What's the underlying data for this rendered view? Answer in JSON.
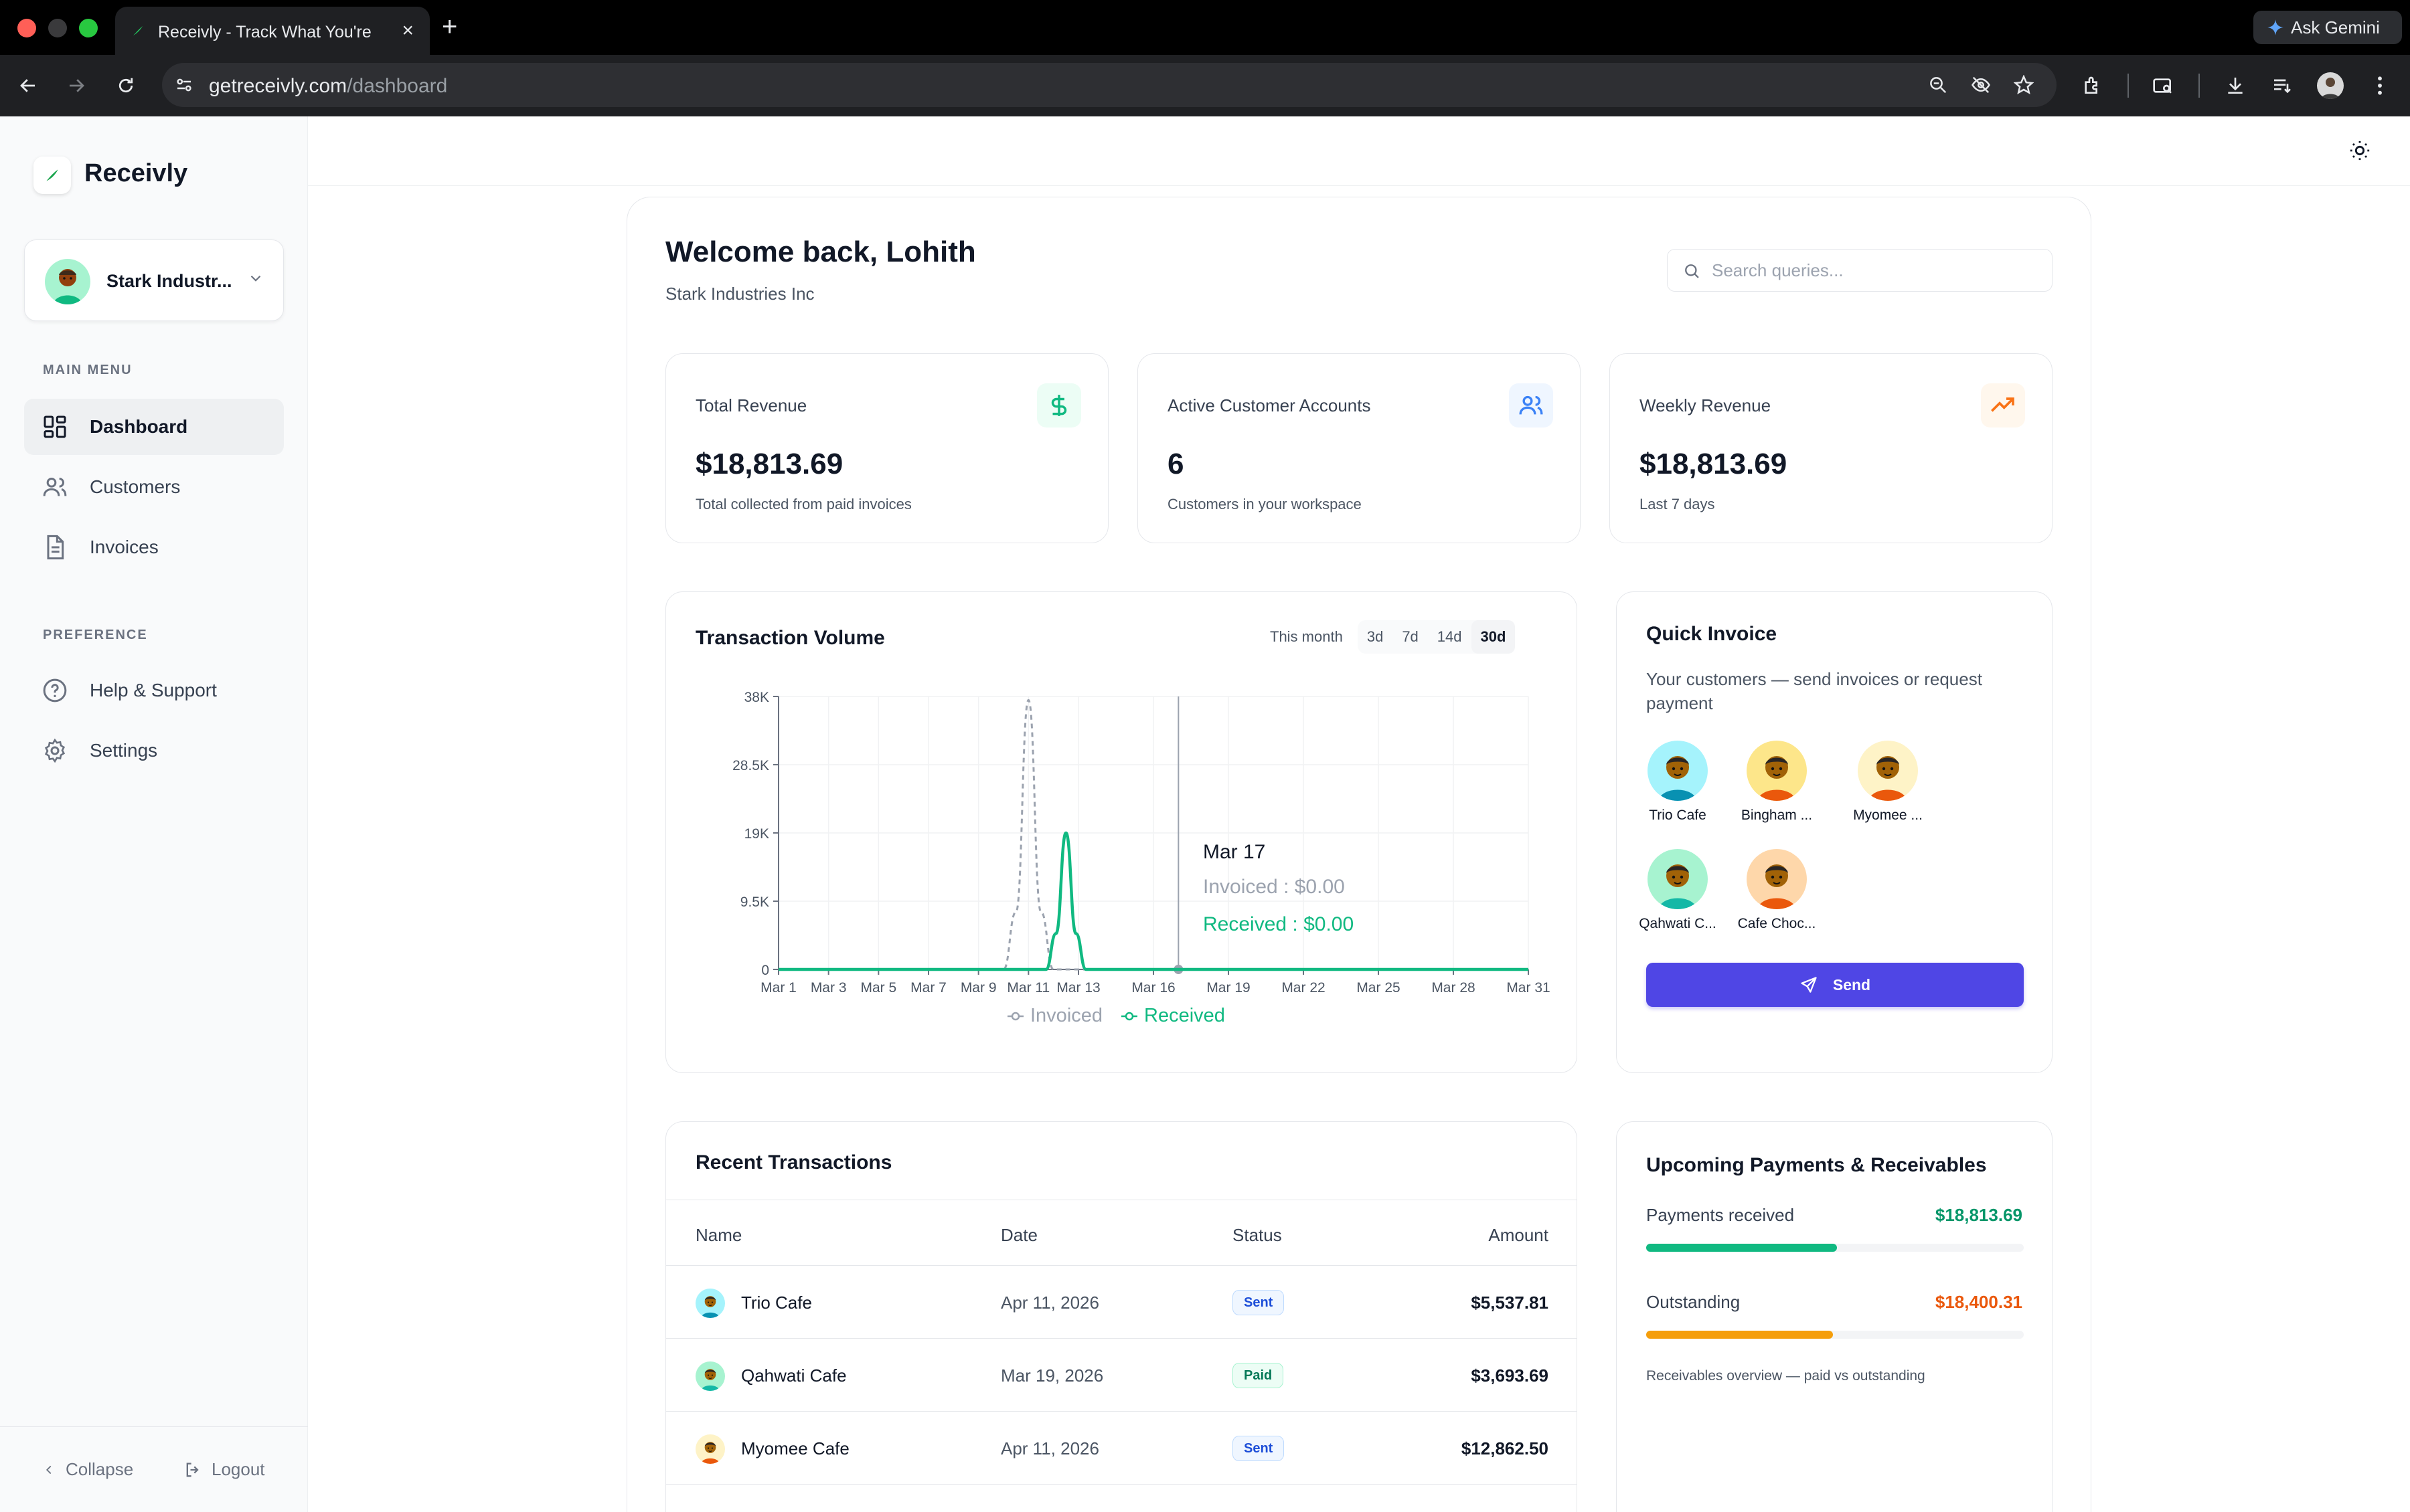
{
  "browser": {
    "tab_title": "Receivly - Track What You're",
    "url_host": "getreceivly.com",
    "url_path": "/dashboard",
    "gemini_label": "Ask Gemini"
  },
  "sidebar": {
    "brand": "Receivly",
    "workspace": "Stark Industr...",
    "main_menu_heading": "MAIN MENU",
    "preference_heading": "PREFERENCE",
    "items": [
      {
        "label": "Dashboard",
        "icon": "grid-icon",
        "active": true
      },
      {
        "label": "Customers",
        "icon": "users-icon"
      },
      {
        "label": "Invoices",
        "icon": "file-icon"
      }
    ],
    "preference_items": [
      {
        "label": "Help & Support",
        "icon": "help-icon"
      },
      {
        "label": "Settings",
        "icon": "gear-icon"
      }
    ],
    "collapse_label": "Collapse",
    "logout_label": "Logout"
  },
  "header": {
    "welcome": "Welcome back, Lohith",
    "company": "Stark Industries Inc",
    "search_placeholder": "Search queries..."
  },
  "stats": [
    {
      "label": "Total Revenue",
      "value": "$18,813.69",
      "sub": "Total collected from paid invoices",
      "icon": "dollar-icon",
      "color": "#10b981"
    },
    {
      "label": "Active Customer Accounts",
      "value": "6",
      "sub": "Customers in your workspace",
      "icon": "users-icon",
      "color": "#3b82f6"
    },
    {
      "label": "Weekly Revenue",
      "value": "$18,813.69",
      "sub": "Last 7 days",
      "icon": "trend-up-icon",
      "color": "#f97316"
    }
  ],
  "chart": {
    "title": "Transaction Volume",
    "ranges": [
      "This month",
      "3d",
      "7d",
      "14d",
      "30d"
    ],
    "selected_range": "30d",
    "tooltip": {
      "date": "Mar 17",
      "invoiced": "Invoiced : $0.00",
      "received": "Received : $0.00"
    }
  },
  "chart_data": {
    "type": "line",
    "x_ticks": [
      "Mar 1",
      "Mar 3",
      "Mar 5",
      "Mar 7",
      "Mar 9",
      "Mar 11",
      "Mar 13",
      "Mar 16",
      "Mar 19",
      "Mar 22",
      "Mar 25",
      "Mar 28",
      "Mar 31"
    ],
    "y_ticks": [
      "0",
      "9.5K",
      "19K",
      "28.5K",
      "38K"
    ],
    "ylim": [
      0,
      38000
    ],
    "xlim": [
      1,
      31
    ],
    "series": [
      {
        "name": "Invoiced",
        "color": "#9ca3af",
        "dashed": true,
        "x": [
          1,
          9,
          10,
          10.5,
          11,
          11.5,
          12,
          13,
          31
        ],
        "y": [
          0,
          0,
          0,
          8000,
          37500,
          8000,
          0,
          0,
          0
        ]
      },
      {
        "name": "Received",
        "color": "#10b981",
        "dashed": false,
        "x": [
          1,
          11,
          11.7,
          12.1,
          12.5,
          12.9,
          13.3,
          14,
          31
        ],
        "y": [
          0,
          0,
          0,
          5000,
          19000,
          5000,
          0,
          0,
          0
        ]
      }
    ],
    "grid": true,
    "legend": "bottom-center"
  },
  "quick_invoice": {
    "title": "Quick Invoice",
    "description": "Your customers — send invoices or request payment",
    "customers": [
      {
        "name": "Trio Cafe",
        "bg": "#a5f3fc",
        "shirt": "#0891b2"
      },
      {
        "name": "Bingham ...",
        "bg": "#fde68a",
        "shirt": "#ea580c"
      },
      {
        "name": "Myomee ...",
        "bg": "#fef3c7",
        "shirt": "#ea580c"
      },
      {
        "name": "Qahwati C...",
        "bg": "#a7f3d0",
        "shirt": "#14b8a6"
      },
      {
        "name": "Cafe Choc...",
        "bg": "#fed7aa",
        "shirt": "#ea580c"
      }
    ],
    "send_label": "Send"
  },
  "transactions": {
    "title": "Recent Transactions",
    "columns": [
      "Name",
      "Date",
      "Status",
      "Amount"
    ],
    "rows": [
      {
        "name": "Trio Cafe",
        "date": "Apr 11, 2026",
        "status": "Sent",
        "amount": "$5,537.81",
        "bg": "#a5f3fc",
        "shirt": "#0891b2"
      },
      {
        "name": "Qahwati Cafe",
        "date": "Mar 19, 2026",
        "status": "Paid",
        "amount": "$3,693.69",
        "bg": "#a7f3d0",
        "shirt": "#14b8a6"
      },
      {
        "name": "Myomee Cafe",
        "date": "Apr 11, 2026",
        "status": "Sent",
        "amount": "$12,862.50",
        "bg": "#fef3c7",
        "shirt": "#ea580c"
      }
    ]
  },
  "payments": {
    "title": "Upcoming Payments & Receivables",
    "received_label": "Payments received",
    "received_value": "$18,813.69",
    "received_fraction": 0.506,
    "outstanding_label": "Outstanding",
    "outstanding_value": "$18,400.31",
    "outstanding_fraction": 0.494,
    "note": "Receivables overview — paid vs outstanding"
  }
}
